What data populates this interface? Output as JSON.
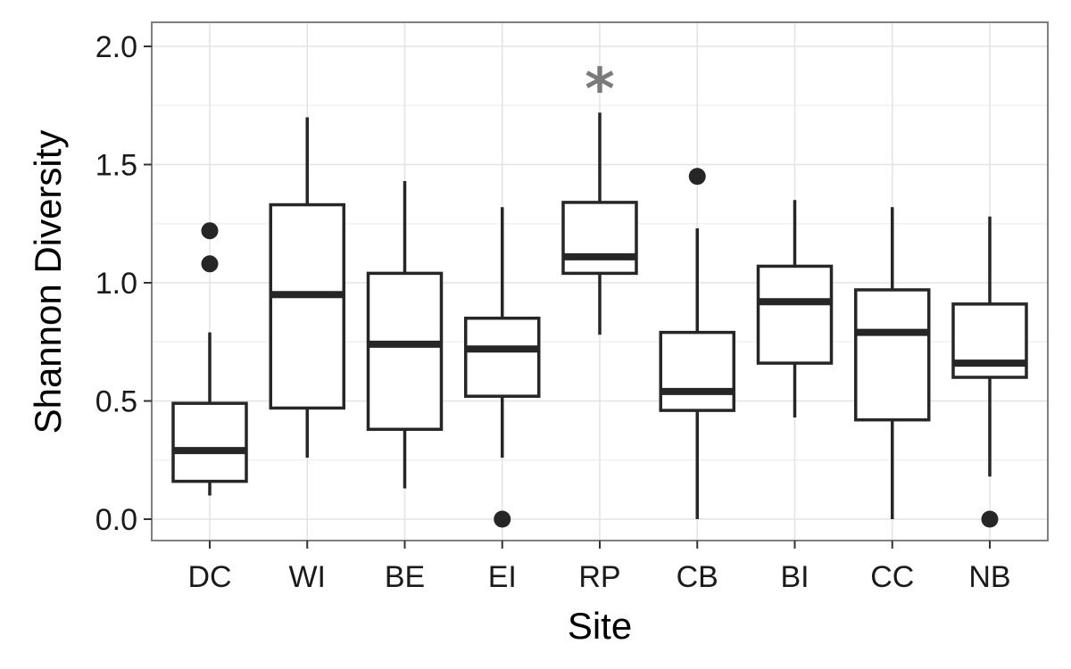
{
  "chart_data": {
    "type": "box",
    "xlabel": "Site",
    "ylabel": "Shannon Diversity",
    "ylim": [
      -0.1,
      2.1
    ],
    "yticks": [
      0.0,
      0.5,
      1.0,
      1.5,
      2.0
    ],
    "ytick_labels": [
      "0.0",
      "0.5",
      "1.0",
      "1.5",
      "2.0"
    ],
    "grid": true,
    "colors": {
      "box": "#262626",
      "grid_major": "#e3e3e3",
      "grid_minor": "#f1f1f1",
      "panel_border": "#7f7f7f",
      "annotation": "#7a7a7a"
    },
    "categories": [
      "DC",
      "WI",
      "BE",
      "EI",
      "RP",
      "CB",
      "BI",
      "CC",
      "NB"
    ],
    "boxes": [
      {
        "site": "DC",
        "whisker_low": 0.1,
        "q1": 0.16,
        "median": 0.29,
        "q3": 0.49,
        "whisker_high": 0.79,
        "outliers": [
          1.08,
          1.22
        ]
      },
      {
        "site": "WI",
        "whisker_low": 0.26,
        "q1": 0.47,
        "median": 0.95,
        "q3": 1.33,
        "whisker_high": 1.7,
        "outliers": []
      },
      {
        "site": "BE",
        "whisker_low": 0.13,
        "q1": 0.38,
        "median": 0.74,
        "q3": 1.04,
        "whisker_high": 1.43,
        "outliers": []
      },
      {
        "site": "EI",
        "whisker_low": 0.26,
        "q1": 0.52,
        "median": 0.72,
        "q3": 0.85,
        "whisker_high": 1.32,
        "outliers": [
          0.0
        ]
      },
      {
        "site": "RP",
        "whisker_low": 0.78,
        "q1": 1.04,
        "median": 1.11,
        "q3": 1.34,
        "whisker_high": 1.72,
        "outliers": []
      },
      {
        "site": "CB",
        "whisker_low": 0.0,
        "q1": 0.46,
        "median": 0.54,
        "q3": 0.79,
        "whisker_high": 1.23,
        "outliers": [
          1.45
        ]
      },
      {
        "site": "BI",
        "whisker_low": 0.43,
        "q1": 0.66,
        "median": 0.92,
        "q3": 1.07,
        "whisker_high": 1.35,
        "outliers": []
      },
      {
        "site": "CC",
        "whisker_low": 0.0,
        "q1": 0.42,
        "median": 0.79,
        "q3": 0.97,
        "whisker_high": 1.32,
        "outliers": []
      },
      {
        "site": "NB",
        "whisker_low": 0.18,
        "q1": 0.6,
        "median": 0.66,
        "q3": 0.91,
        "whisker_high": 1.28,
        "outliers": [
          0.0
        ]
      }
    ],
    "annotations": [
      {
        "text": "*",
        "site": "RP",
        "y": 1.88
      }
    ]
  }
}
